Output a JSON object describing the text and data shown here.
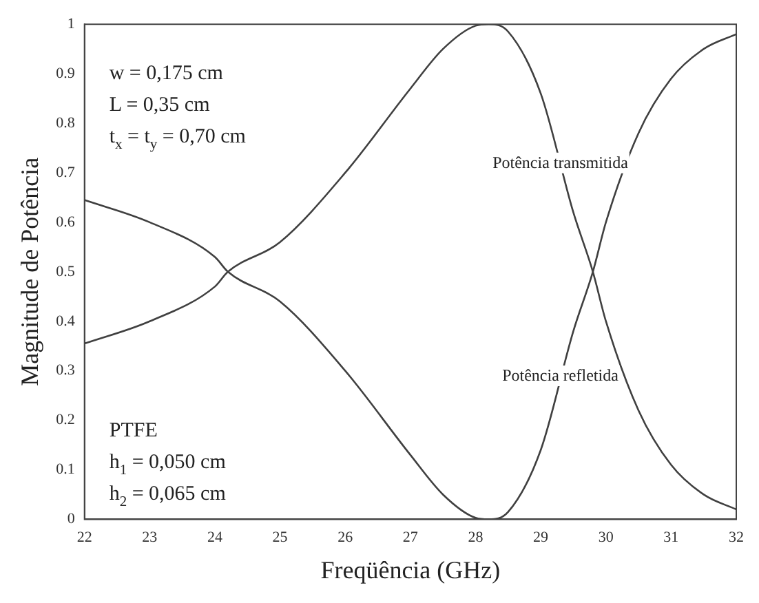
{
  "chart_data": {
    "type": "line",
    "xlabel": "Freqüência (GHz)",
    "ylabel": "Magnitude de Potência",
    "xlim": [
      22,
      32
    ],
    "xticks": [
      22,
      23,
      24,
      25,
      26,
      27,
      28,
      29,
      30,
      31,
      32
    ],
    "ylim": [
      0,
      1
    ],
    "yticks": [
      0,
      0.1,
      0.2,
      0.3,
      0.4,
      0.5,
      0.6,
      0.7,
      0.8,
      0.9,
      1
    ],
    "grid": false,
    "legend": false,
    "marker": "none",
    "line_style": "solid",
    "series": [
      {
        "color": "#404040",
        "x": [
          22,
          23,
          24,
          24.2,
          25,
          26,
          27,
          27.5,
          28,
          28.2,
          28.5,
          29,
          29.5,
          29.8,
          30,
          30.5,
          31,
          31.5,
          32
        ],
        "values": [
          0.355,
          0.4,
          0.47,
          0.5,
          0.56,
          0.7,
          0.87,
          0.95,
          0.997,
          1.0,
          0.985,
          0.86,
          0.62,
          0.5,
          0.4,
          0.22,
          0.11,
          0.05,
          0.02
        ]
      },
      {
        "color": "#404040",
        "x": [
          22,
          23,
          24,
          24.2,
          25,
          26,
          27,
          27.5,
          28,
          28.2,
          28.5,
          29,
          29.5,
          29.8,
          30,
          30.5,
          31,
          31.5,
          32
        ],
        "values": [
          0.645,
          0.6,
          0.53,
          0.5,
          0.44,
          0.3,
          0.13,
          0.05,
          0.003,
          0.0,
          0.015,
          0.14,
          0.38,
          0.5,
          0.6,
          0.78,
          0.89,
          0.95,
          0.98
        ]
      }
    ],
    "annotations": [
      "w = 0,175 cm",
      "L = 0,35 cm",
      "t$_{x}$ = t$_{y}$ = 0,70 cm",
      "PTFE",
      "h$_{1}$ = 0,050 cm",
      "h$_{2}$ = 0,065 cm",
      {
        "text": "Potência transmitida",
        "x": 29.3,
        "y": 0.71
      },
      {
        "text": "Potência refletida",
        "x": 29.3,
        "y": 0.28
      }
    ]
  }
}
